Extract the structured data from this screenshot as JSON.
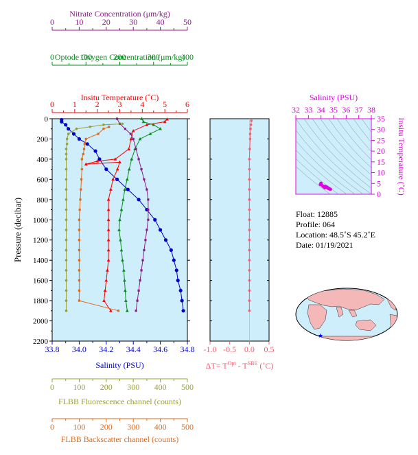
{
  "colors": {
    "nitrate": "#8b1a8b",
    "oxygen": "#0a8a1e",
    "temperature": "#ff0000",
    "salinity": "#0000cc",
    "fluorescence": "#9aa035",
    "backscatter": "#e06a1a",
    "deltat": "#f06070",
    "ts_axis": "#e000e0",
    "plot_bg": "#cdeefa"
  },
  "chart_data": [
    {
      "type": "line",
      "id": "profiles",
      "yaxis": {
        "label": "Pressure (decibar)",
        "range": [
          0,
          2200
        ],
        "ticks": [
          0,
          200,
          400,
          600,
          800,
          1000,
          1200,
          1400,
          1600,
          1800,
          2000,
          2200
        ]
      },
      "axes": {
        "nitrate": {
          "label": "Nitrate Concentration (μm/kg)",
          "range": [
            0,
            50
          ],
          "ticks": [
            0,
            10,
            20,
            30,
            40,
            50
          ]
        },
        "oxygen": {
          "label": "Optode Oxygen Concentration (μm/kg)",
          "range": [
            0,
            400
          ],
          "ticks": [
            0,
            100,
            200,
            300,
            400
          ]
        },
        "temperature": {
          "label": "Insitu Temperature (˚C)",
          "range": [
            0,
            6
          ],
          "ticks": [
            0,
            1,
            2,
            3,
            4,
            5,
            6
          ]
        },
        "salinity": {
          "label": "Salinity (PSU)",
          "range": [
            33.8,
            34.8
          ],
          "ticks": [
            "33.8",
            "34.0",
            "34.2",
            "34.4",
            "34.6",
            "34.8"
          ]
        },
        "fluorescence": {
          "label": "FLBB Fluorescence channel (counts)",
          "range": [
            0,
            500
          ],
          "ticks": [
            0,
            100,
            200,
            300,
            400,
            500
          ]
        },
        "backscatter": {
          "label": "FLBB Backscatter channel (counts)",
          "range": [
            0,
            500
          ],
          "ticks": [
            0,
            100,
            200,
            300,
            400,
            500
          ]
        }
      },
      "series": [
        {
          "key": "salinity",
          "points": [
            [
              33.87,
              10
            ],
            [
              33.87,
              30
            ],
            [
              33.9,
              60
            ],
            [
              33.92,
              100
            ],
            [
              33.96,
              150
            ],
            [
              34.0,
              200
            ],
            [
              34.06,
              250
            ],
            [
              34.12,
              320
            ],
            [
              34.15,
              400
            ],
            [
              34.2,
              500
            ],
            [
              34.28,
              600
            ],
            [
              34.36,
              700
            ],
            [
              34.44,
              800
            ],
            [
              34.5,
              900
            ],
            [
              34.56,
              1000
            ],
            [
              34.6,
              1100
            ],
            [
              34.64,
              1200
            ],
            [
              34.68,
              1300
            ],
            [
              34.7,
              1400
            ],
            [
              34.72,
              1500
            ],
            [
              34.73,
              1600
            ],
            [
              34.75,
              1700
            ],
            [
              34.76,
              1800
            ],
            [
              34.77,
              1900
            ]
          ]
        },
        {
          "key": "temperature",
          "points": [
            [
              5.1,
              5
            ],
            [
              5.0,
              30
            ],
            [
              4.2,
              60
            ],
            [
              3.6,
              120
            ],
            [
              3.5,
              200
            ],
            [
              3.4,
              300
            ],
            [
              2.8,
              400
            ],
            [
              2.0,
              420
            ],
            [
              1.5,
              450
            ],
            [
              3.0,
              430
            ],
            [
              2.9,
              500
            ],
            [
              2.7,
              600
            ],
            [
              2.6,
              700
            ],
            [
              2.5,
              800
            ],
            [
              2.5,
              900
            ],
            [
              2.5,
              1000
            ],
            [
              2.5,
              1100
            ],
            [
              2.5,
              1200
            ],
            [
              2.5,
              1300
            ],
            [
              2.5,
              1400
            ],
            [
              2.45,
              1500
            ],
            [
              2.4,
              1600
            ],
            [
              2.35,
              1700
            ],
            [
              2.3,
              1800
            ],
            [
              2.6,
              1900
            ]
          ]
        },
        {
          "key": "oxygen",
          "points": [
            [
              265,
              0
            ],
            [
              270,
              30
            ],
            [
              300,
              60
            ],
            [
              320,
              100
            ],
            [
              290,
              150
            ],
            [
              260,
              200
            ],
            [
              245,
              300
            ],
            [
              235,
              400
            ],
            [
              228,
              500
            ],
            [
              222,
              600
            ],
            [
              215,
              700
            ],
            [
              210,
              800
            ],
            [
              205,
              900
            ],
            [
              200,
              1000
            ],
            [
              198,
              1100
            ],
            [
              202,
              1200
            ],
            [
              205,
              1300
            ],
            [
              208,
              1400
            ],
            [
              212,
              1500
            ],
            [
              214,
              1600
            ],
            [
              216,
              1700
            ],
            [
              218,
              1800
            ],
            [
              222,
              1900
            ]
          ]
        },
        {
          "key": "nitrate",
          "points": [
            [
              24,
              0
            ],
            [
              25,
              50
            ],
            [
              27,
              100
            ],
            [
              29,
              150
            ],
            [
              30,
              200
            ],
            [
              31,
              300
            ],
            [
              32,
              400
            ],
            [
              33,
              500
            ],
            [
              34,
              600
            ],
            [
              35,
              700
            ],
            [
              35.5,
              800
            ],
            [
              35.5,
              900
            ],
            [
              35.5,
              1000
            ],
            [
              35,
              1100
            ],
            [
              34.5,
              1200
            ],
            [
              34,
              1300
            ],
            [
              33.5,
              1400
            ],
            [
              33,
              1500
            ],
            [
              32.5,
              1600
            ],
            [
              32,
              1700
            ],
            [
              31.5,
              1800
            ],
            [
              31,
              1900
            ]
          ]
        },
        {
          "key": "fluorescence",
          "points": [
            [
              260,
              50
            ],
            [
              190,
              60
            ],
            [
              140,
              80
            ],
            [
              90,
              100
            ],
            [
              60,
              150
            ],
            [
              55,
              200
            ],
            [
              55,
              250
            ],
            [
              52,
              300
            ],
            [
              52,
              350
            ],
            [
              52,
              400
            ],
            [
              52,
              500
            ],
            [
              52,
              600
            ],
            [
              52,
              700
            ],
            [
              52,
              800
            ],
            [
              52,
              900
            ],
            [
              52,
              1000
            ],
            [
              52,
              1100
            ],
            [
              52,
              1200
            ],
            [
              52,
              1300
            ],
            [
              52,
              1400
            ],
            [
              52,
              1500
            ],
            [
              52,
              1600
            ],
            [
              52,
              1700
            ],
            [
              52,
              1800
            ],
            [
              52,
              1900
            ]
          ]
        },
        {
          "key": "backscatter",
          "points": [
            [
              210,
              80
            ],
            [
              190,
              100
            ],
            [
              170,
              150
            ],
            [
              125,
              200
            ],
            [
              120,
              250
            ],
            [
              118,
              300
            ],
            [
              115,
              350
            ],
            [
              110,
              400
            ],
            [
              110,
              500
            ],
            [
              108,
              600
            ],
            [
              106,
              700
            ],
            [
              104,
              800
            ],
            [
              102,
              900
            ],
            [
              100,
              1000
            ],
            [
              100,
              1100
            ],
            [
              100,
              1200
            ],
            [
              100,
              1300
            ],
            [
              100,
              1400
            ],
            [
              100,
              1500
            ],
            [
              100,
              1600
            ],
            [
              100,
              1700
            ],
            [
              100,
              1800
            ],
            [
              245,
              1900
            ]
          ]
        }
      ]
    },
    {
      "type": "line",
      "id": "delta-t",
      "xlabel": "ΔT= T",
      "xlabel_sup1": "Opt",
      "xlabel_mid": " - T",
      "xlabel_sup2": "SBE",
      "xlabel_tail": " (˚C)",
      "xrange": [
        -1.0,
        0.5
      ],
      "xticks": [
        "-1.0",
        "-0.5",
        "0.0",
        "0.5"
      ],
      "yrange": [
        0,
        2200
      ],
      "points": [
        [
          0.05,
          20
        ],
        [
          0.04,
          60
        ],
        [
          0.03,
          100
        ],
        [
          0.02,
          150
        ],
        [
          0.02,
          200
        ],
        [
          0.01,
          300
        ],
        [
          0.0,
          400
        ],
        [
          0.0,
          500
        ],
        [
          0.0,
          600
        ],
        [
          0.0,
          700
        ],
        [
          0.0,
          800
        ],
        [
          0.0,
          900
        ],
        [
          0.0,
          1000
        ],
        [
          0.0,
          1100
        ],
        [
          0.0,
          1200
        ],
        [
          0.0,
          1300
        ],
        [
          0.0,
          1400
        ],
        [
          0.0,
          1500
        ],
        [
          0.0,
          1600
        ],
        [
          0.0,
          1700
        ],
        [
          0.0,
          1800
        ],
        [
          0.0,
          1900
        ]
      ]
    },
    {
      "type": "scatter",
      "id": "ts-diagram",
      "xlabel": "Salinity (PSU)",
      "ylabel": "Insitu Temperature (˚C)",
      "xrange": [
        32,
        38
      ],
      "yrange": [
        0,
        35
      ],
      "xticks": [
        "32",
        "33",
        "34",
        "35",
        "36",
        "37",
        "38"
      ],
      "yticks": [
        "0",
        "5",
        "10",
        "15",
        "20",
        "25",
        "30",
        "35"
      ],
      "points": [
        [
          34.0,
          5.1
        ],
        [
          33.95,
          4.5
        ],
        [
          34.1,
          4.0
        ],
        [
          34.2,
          3.5
        ],
        [
          34.3,
          3.0
        ],
        [
          34.4,
          3.5
        ],
        [
          34.5,
          3.0
        ],
        [
          34.6,
          2.6
        ],
        [
          34.7,
          2.4
        ],
        [
          34.75,
          2.3
        ],
        [
          34.6,
          2.8
        ],
        [
          34.5,
          3.2
        ],
        [
          34.3,
          3.6
        ]
      ]
    }
  ],
  "info": {
    "float": "Float:  12885",
    "profile": "Profile:  064",
    "location": "Location:  48.5˚S  45.2˚E",
    "date": "Date:  01/19/2021"
  }
}
